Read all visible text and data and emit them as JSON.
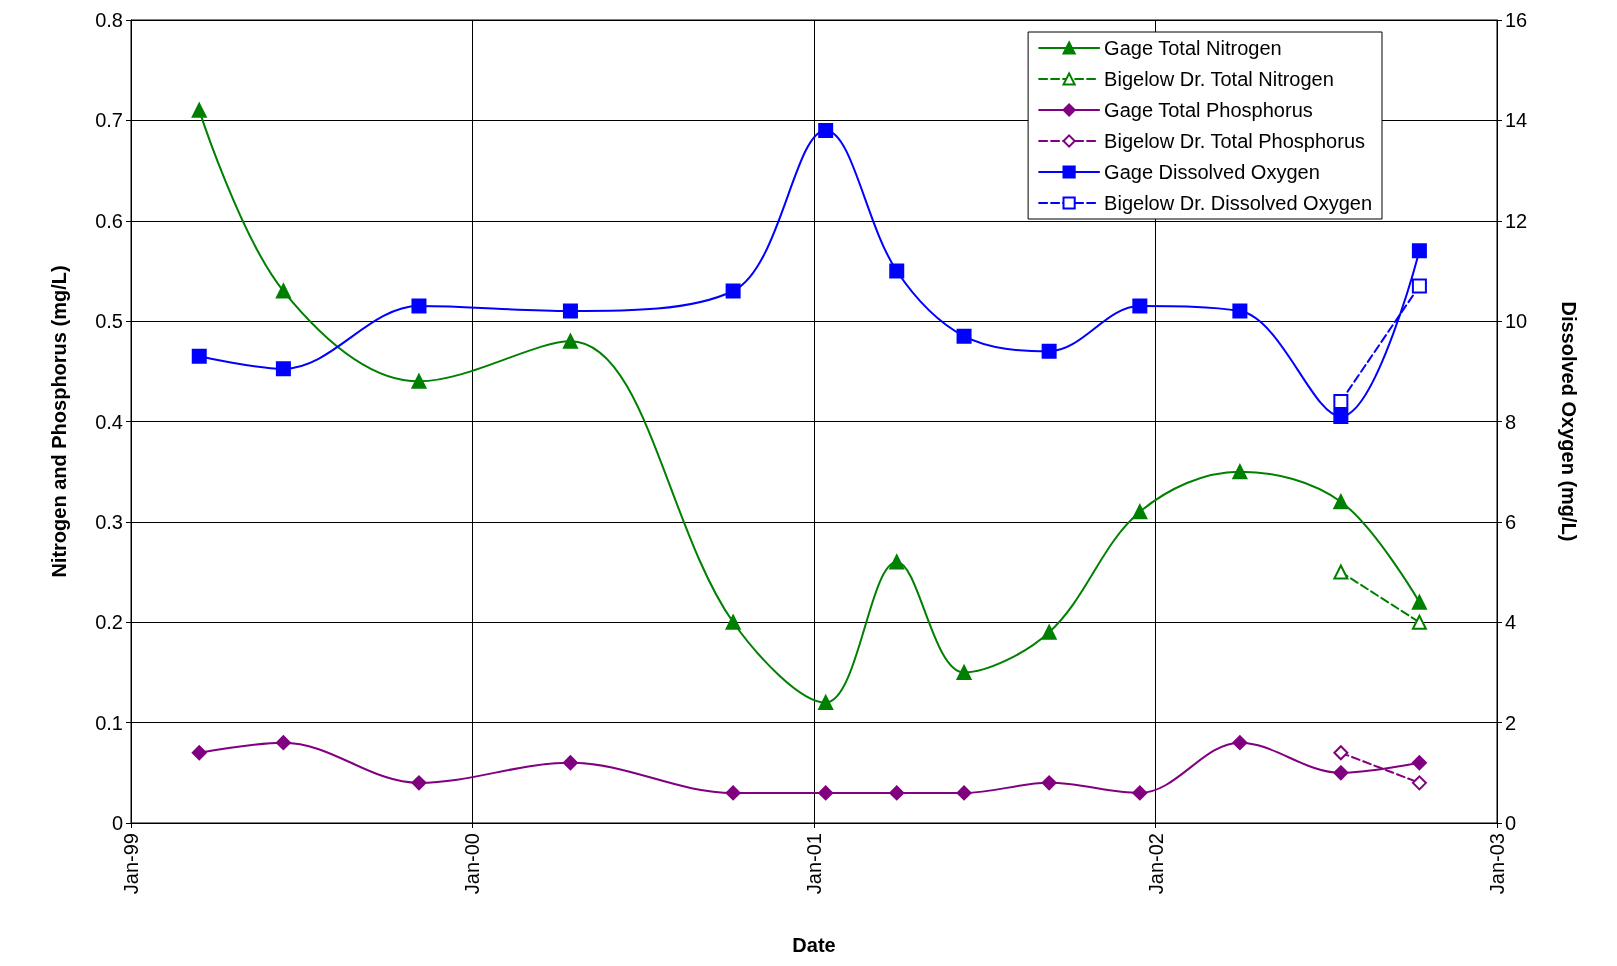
{
  "chart_data": {
    "type": "line",
    "xlabel": "Date",
    "ylabel": "Nitrogen and Phosphorus (mg/L)",
    "y2label": "Dissolved Oxygen (mg/L)",
    "x": [
      "1999-03-15",
      "1999-06-13",
      "1999-11-05",
      "2000-04-15",
      "2000-10-06",
      "2001-01-13",
      "2001-03-30",
      "2001-06-10",
      "2001-09-09",
      "2001-12-15",
      "2002-04-01",
      "2002-07-18",
      "2002-10-10"
    ],
    "series": [
      {
        "name": "Gage Total Nitrogen",
        "color": "#008000",
        "marker": "triangle",
        "line_style": "solid",
        "values": [
          0.71,
          0.53,
          0.44,
          0.48,
          0.2,
          0.12,
          0.26,
          0.15,
          0.19,
          0.31,
          0.35,
          0.32,
          0.22
        ]
      },
      {
        "name": "Bigelow Dr. Total Nitrogen",
        "color": "#008000",
        "marker": "triangle",
        "line_style": "dashed",
        "x": [
          "2002-07-18",
          "2002-10-10"
        ],
        "values": [
          0.25,
          0.2
        ]
      },
      {
        "name": "Gage Total Phosphorus",
        "color": "#800080",
        "marker": "diamond",
        "line_style": "solid",
        "values": [
          0.07,
          0.08,
          0.04,
          0.06,
          0.03,
          0.03,
          0.03,
          0.03,
          0.04,
          0.03,
          0.08,
          0.05,
          0.06
        ]
      },
      {
        "name": "Bigelow Dr. Total Phosphorus",
        "color": "#800080",
        "marker": "diamond",
        "line_style": "dashed",
        "x": [
          "2002-07-18",
          "2002-10-10"
        ],
        "values": [
          0.07,
          0.04
        ]
      },
      {
        "name": "Gage Dissolved Oxygen",
        "color": "#0000ff",
        "marker": "square",
        "line_style": "solid",
        "axis": "y2",
        "values": [
          9.3,
          9.05,
          10.3,
          10.2,
          10.6,
          13.8,
          11.0,
          9.7,
          9.4,
          10.3,
          10.2,
          8.1,
          11.4
        ]
      },
      {
        "name": "Bigelow Dr. Dissolved Oxygen",
        "color": "#0000ff",
        "marker": "square",
        "line_style": "dashed",
        "axis": "y2",
        "x": [
          "2002-07-18",
          "2002-10-10"
        ],
        "values": [
          8.4,
          10.7
        ]
      }
    ],
    "xlim": [
      "1999-01-01",
      "2003-01-01"
    ],
    "xticks": [
      {
        "value": "1999-01-01",
        "label": "Jan-99"
      },
      {
        "value": "2000-01-01",
        "label": "Jan-00"
      },
      {
        "value": "2001-01-01",
        "label": "Jan-01"
      },
      {
        "value": "2002-01-01",
        "label": "Jan-02"
      },
      {
        "value": "2003-01-01",
        "label": "Jan-03"
      }
    ],
    "ylim": [
      0,
      0.8
    ],
    "yticks": [
      0,
      0.1,
      0.2,
      0.3,
      0.4,
      0.5,
      0.6,
      0.7,
      0.8
    ],
    "y2lim": [
      0,
      16
    ],
    "y2ticks": [
      0,
      2,
      4,
      6,
      8,
      10,
      12,
      14,
      16
    ],
    "grid": true,
    "legend": "top right"
  }
}
